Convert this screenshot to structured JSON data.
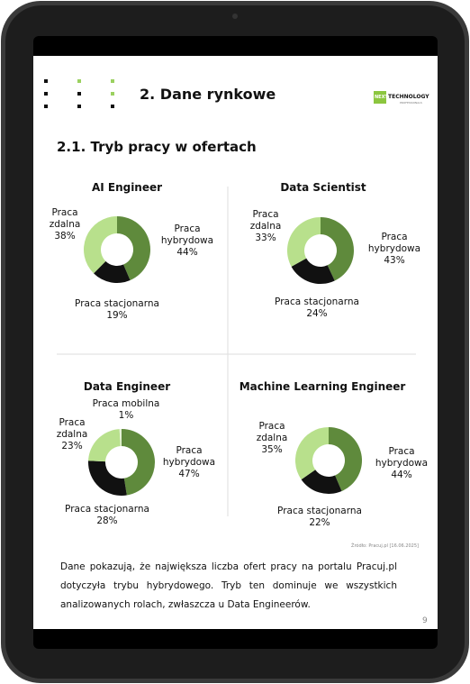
{
  "header": {
    "title": "2. Dane rynkowe",
    "logo": {
      "accent": "NEXT",
      "name": "TECHNOLOGY",
      "tagline": "PROFESSIONALS"
    }
  },
  "section_title": "2.1. Tryb pracy w ofertach",
  "chart_data": [
    {
      "type": "donut",
      "title": "AI Engineer",
      "categories": [
        "Praca hybrydowa",
        "Praca stacjonarna",
        "Praca zdalna"
      ],
      "values": [
        44,
        19,
        38
      ],
      "value_labels": [
        "44%",
        "19%",
        "38%"
      ],
      "colors": [
        "#5f8a3c",
        "#111111",
        "#b8e08c"
      ]
    },
    {
      "type": "donut",
      "title": "Data Scientist",
      "categories": [
        "Praca hybrydowa",
        "Praca stacjonarna",
        "Praca zdalna"
      ],
      "values": [
        43,
        24,
        33
      ],
      "value_labels": [
        "43%",
        "24%",
        "33%"
      ],
      "colors": [
        "#5f8a3c",
        "#111111",
        "#b8e08c"
      ]
    },
    {
      "type": "donut",
      "title": "Data Engineer",
      "categories": [
        "Praca hybrydowa",
        "Praca stacjonarna",
        "Praca zdalna",
        "Praca mobilna"
      ],
      "values": [
        47,
        28,
        23,
        1
      ],
      "value_labels": [
        "47%",
        "28%",
        "23%",
        "1%"
      ],
      "colors": [
        "#5f8a3c",
        "#111111",
        "#b8e08c",
        "#e6f2d8"
      ]
    },
    {
      "type": "donut",
      "title": "Machine Learning Engineer",
      "categories": [
        "Praca hybrydowa",
        "Praca stacjonarna",
        "Praca zdalna"
      ],
      "values": [
        44,
        22,
        35
      ],
      "value_labels": [
        "44%",
        "22%",
        "35%"
      ],
      "colors": [
        "#5f8a3c",
        "#111111",
        "#b8e08c"
      ]
    }
  ],
  "source": "Źródło: Pracuj.pl [16.06.2025]",
  "body": "Dane pokazują, że największa liczba ofert pracy na portalu Pracuj.pl dotyczyła trybu hybrydowego. Tryb ten dominuje we wszystkich analizowanych rolach, zwłaszcza u  Data Engineerów.",
  "page_number": "9"
}
